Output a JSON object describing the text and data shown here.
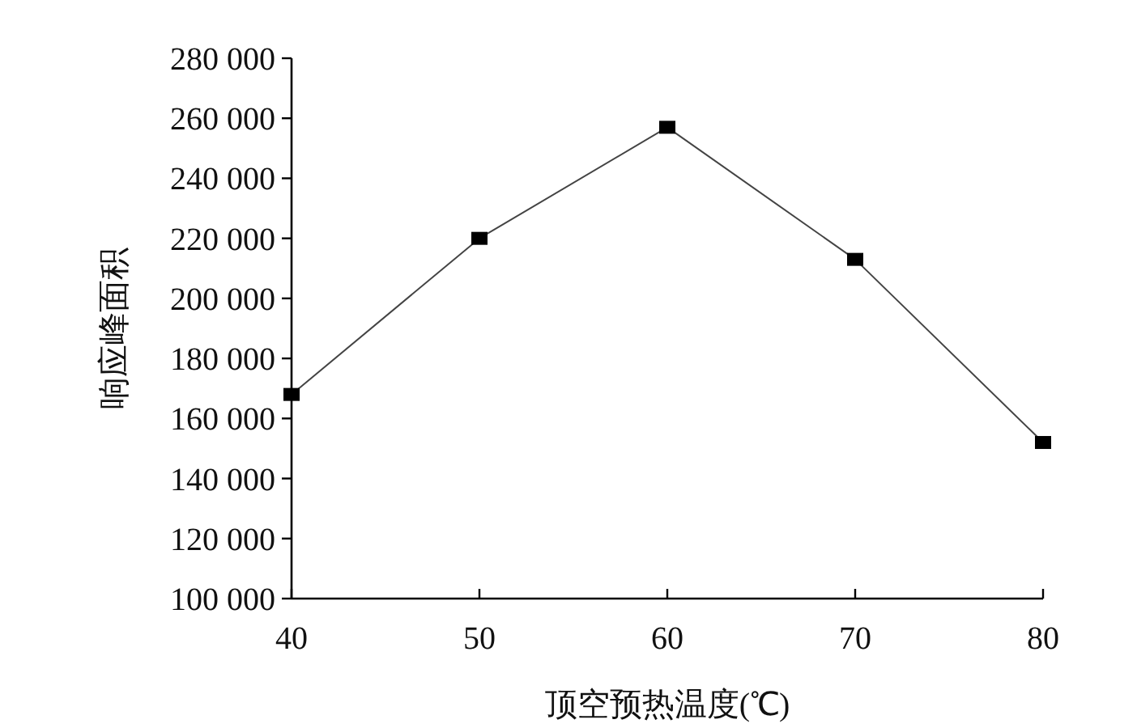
{
  "chart_data": {
    "type": "line",
    "xlabel": "顶空预热温度(℃)",
    "ylabel": "响应峰面积",
    "x": [
      40,
      50,
      60,
      70,
      80
    ],
    "series": [
      {
        "color": "#000000",
        "values": [
          168000,
          220000,
          257000,
          213000,
          152000
        ]
      }
    ],
    "xlim": [
      40,
      80
    ],
    "xticks": [
      40,
      50,
      60,
      70,
      80
    ],
    "ylim": [
      100000,
      280000
    ],
    "yticks": [
      {
        "value": 100000,
        "label": "100 000"
      },
      {
        "value": 120000,
        "label": "120 000"
      },
      {
        "value": 140000,
        "label": "140 000"
      },
      {
        "value": 160000,
        "label": "160 000"
      },
      {
        "value": 180000,
        "label": "180 000"
      },
      {
        "value": 200000,
        "label": "200 000"
      },
      {
        "value": 220000,
        "label": "220 000"
      },
      {
        "value": 240000,
        "label": "240 000"
      },
      {
        "value": 260000,
        "label": "260 000"
      },
      {
        "value": 280000,
        "label": "280 000"
      }
    ],
    "marker": "square",
    "line_style": "solid",
    "grid": false
  }
}
